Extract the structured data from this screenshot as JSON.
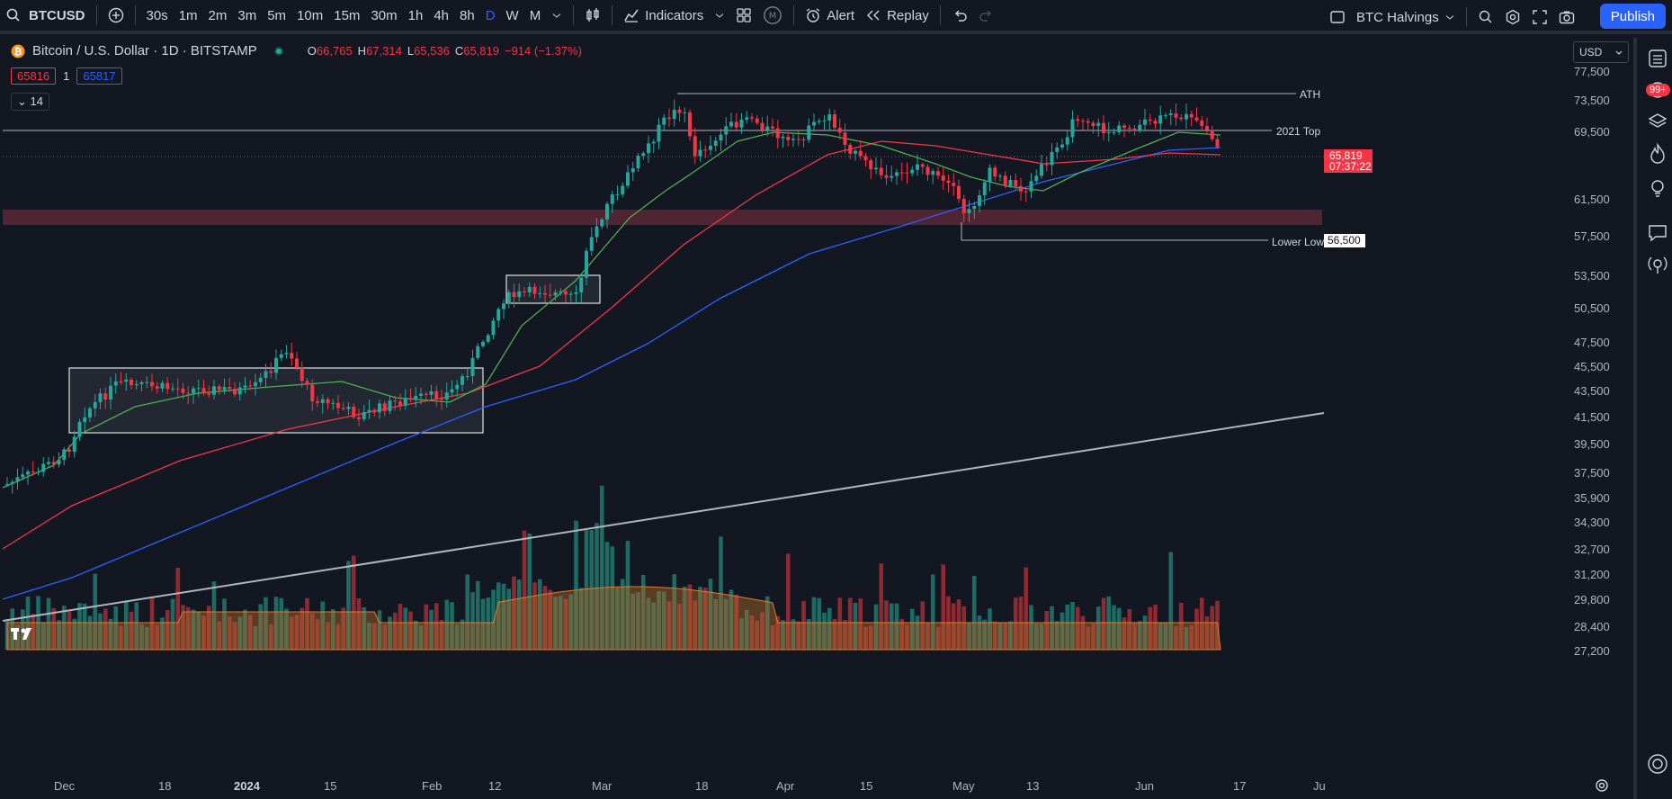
{
  "toolbar": {
    "symbol": "BTCUSD",
    "intervals": [
      "30s",
      "1m",
      "2m",
      "3m",
      "5m",
      "10m",
      "15m",
      "30m",
      "1h",
      "4h",
      "8h",
      "D",
      "W",
      "M"
    ],
    "active_interval": "D",
    "indicators_label": "Indicators",
    "alert_label": "Alert",
    "replay_label": "Replay",
    "layout_name": "BTC Halvings",
    "publish_label": "Publish"
  },
  "legend": {
    "title": "Bitcoin / U.S. Dollar · 1D · BITSTAMP",
    "open_key": "O",
    "open": "66,765",
    "high_key": "H",
    "high": "67,314",
    "low_key": "L",
    "low": "65,536",
    "close_key": "C",
    "close": "65,819",
    "change": "−914 (−1.37%)",
    "bid": "65816",
    "spread": "1",
    "ask": "65817",
    "collapse": "14"
  },
  "currency": "USD",
  "price_labels": [
    "77,500",
    "73,500",
    "69,500",
    "61,500",
    "57,500",
    "53,500",
    "50,500",
    "47,500",
    "45,500",
    "43,500",
    "41,500",
    "39,500",
    "37,500",
    "35,900",
    "34,300",
    "32,700",
    "31,200",
    "29,800",
    "28,400",
    "27,200"
  ],
  "current_price": "65,819",
  "countdown": "07:37:22",
  "lower_low_price": "56,500",
  "horizontal_labels": {
    "ath": "ATH",
    "top2021": "2021 Top",
    "lower_low": "Lower Low"
  },
  "time_labels": [
    "Dec",
    "18",
    "2024",
    "15",
    "Feb",
    "12",
    "Mar",
    "18",
    "Apr",
    "15",
    "May",
    "13",
    "Jun",
    "17",
    "Ju"
  ],
  "notifications_badge": "99+",
  "colors": {
    "up": "#26a69a",
    "down": "#f23645",
    "sma_green": "#4caf50",
    "sma_red": "#f23645",
    "sma_blue": "#2962ff",
    "accent": "#2962ff"
  }
}
